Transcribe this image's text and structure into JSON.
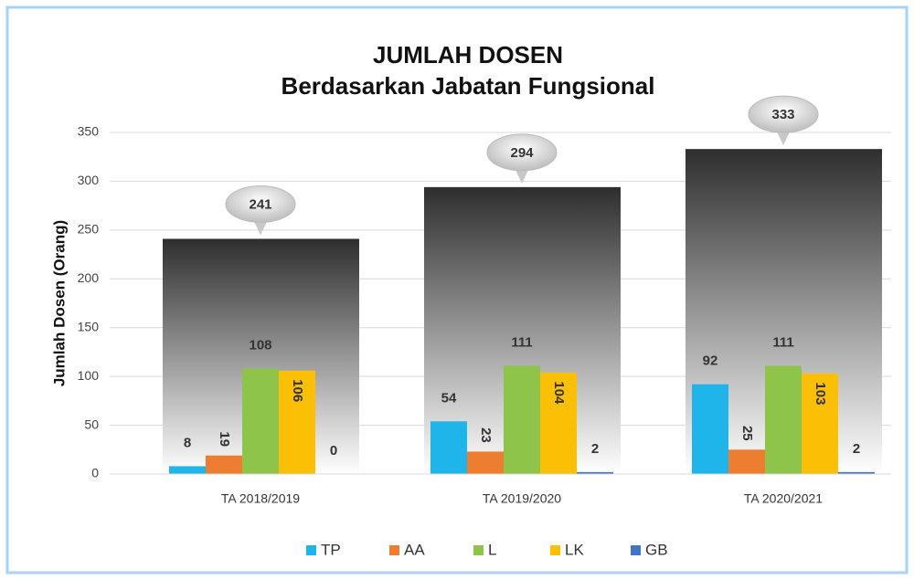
{
  "chart_data": {
    "type": "bar",
    "title": [
      "JUMLAH DOSEN",
      "Berdasarkan Jabatan Fungsional"
    ],
    "y_label": "Jumlah Dosen  (Orang)",
    "categories": [
      "TA 2018/2019",
      "TA 2019/2020",
      "TA 2020/2021"
    ],
    "total_values": [
      241,
      294,
      333
    ],
    "series": [
      {
        "name": "TP",
        "color": "#1fb4ea",
        "values": [
          8,
          54,
          92
        ]
      },
      {
        "name": "AA",
        "color": "#ed7d31",
        "values": [
          19,
          23,
          25
        ]
      },
      {
        "name": "L",
        "color": "#8fc44a",
        "values": [
          108,
          111,
          111
        ]
      },
      {
        "name": "LK",
        "color": "#fbbf06",
        "values": [
          106,
          104,
          103
        ]
      },
      {
        "name": "GB",
        "color": "#4472c4",
        "values": [
          0,
          2,
          2
        ]
      }
    ],
    "ylim": [
      0,
      350
    ],
    "yticks": [
      0,
      50,
      100,
      150,
      200,
      250,
      300,
      350
    ],
    "grid": true,
    "legend": "bottom"
  }
}
